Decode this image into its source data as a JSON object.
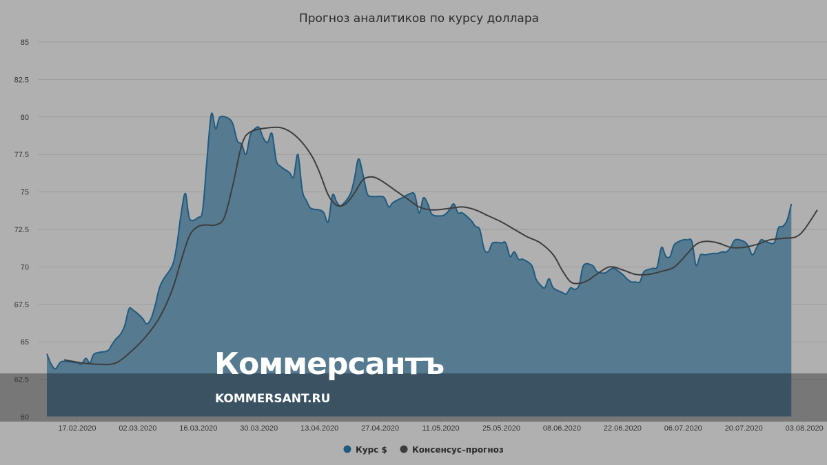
{
  "chart_data": {
    "type": "area",
    "title": "Прогноз аналитиков по курсу доллара",
    "xlabel": "",
    "ylabel": "",
    "ylim": [
      60,
      85
    ],
    "yticks": [
      "60",
      "62.5",
      "65",
      "67.5",
      "70",
      "72.5",
      "75",
      "77.5",
      "80",
      "82.5",
      "85"
    ],
    "xticks": [
      "17.02.2020",
      "02.03.2020",
      "16.03.2020",
      "30.03.2020",
      "13.04.2020",
      "27.04.2020",
      "11.05.2020",
      "25.05.2020",
      "08.06.2020",
      "22.06.2020",
      "06.07.2020",
      "20.07.2020",
      "03.08.2020"
    ],
    "xrange": [
      "2020-02-10",
      "2020-08-06"
    ],
    "grid": true,
    "legend_position": "bottom-center",
    "series": [
      {
        "name": "Курс $",
        "color": "#1f5a80",
        "fill": "#567a8f",
        "style": "area",
        "points": [
          [
            "2020-02-10",
            64.2
          ],
          [
            "2020-02-11",
            63.5
          ],
          [
            "2020-02-12",
            63.2
          ],
          [
            "2020-02-13",
            63.6
          ],
          [
            "2020-02-14",
            63.7
          ],
          [
            "2020-02-17",
            63.6
          ],
          [
            "2020-02-18",
            63.5
          ],
          [
            "2020-02-19",
            63.9
          ],
          [
            "2020-02-20",
            63.6
          ],
          [
            "2020-02-21",
            64.2
          ],
          [
            "2020-02-24",
            64.4
          ],
          [
            "2020-02-25",
            64.8
          ],
          [
            "2020-02-26",
            65.2
          ],
          [
            "2020-02-27",
            65.5
          ],
          [
            "2020-02-28",
            66.1
          ],
          [
            "2020-02-29",
            67.2
          ],
          [
            "2020-03-01",
            67.1
          ],
          [
            "2020-03-03",
            66.6
          ],
          [
            "2020-03-04",
            66.2
          ],
          [
            "2020-03-05",
            66.5
          ],
          [
            "2020-03-06",
            67.4
          ],
          [
            "2020-03-07",
            68.6
          ],
          [
            "2020-03-08",
            69.2
          ],
          [
            "2020-03-10",
            70.1
          ],
          [
            "2020-03-11",
            71.4
          ],
          [
            "2020-03-12",
            73.5
          ],
          [
            "2020-03-13",
            74.9
          ],
          [
            "2020-03-14",
            73.2
          ],
          [
            "2020-03-16",
            73.3
          ],
          [
            "2020-03-17",
            73.8
          ],
          [
            "2020-03-18",
            77.2
          ],
          [
            "2020-03-19",
            80.2
          ],
          [
            "2020-03-20",
            79.2
          ],
          [
            "2020-03-21",
            80.0
          ],
          [
            "2020-03-23",
            79.9
          ],
          [
            "2020-03-24",
            79.5
          ],
          [
            "2020-03-25",
            78.4
          ],
          [
            "2020-03-26",
            78.2
          ],
          [
            "2020-03-27",
            77.5
          ],
          [
            "2020-03-28",
            78.8
          ],
          [
            "2020-03-29",
            79.2
          ],
          [
            "2020-03-30",
            79.3
          ],
          [
            "2020-03-31",
            78.6
          ],
          [
            "2020-04-01",
            78.3
          ],
          [
            "2020-04-02",
            78.9
          ],
          [
            "2020-04-03",
            77.1
          ],
          [
            "2020-04-04",
            76.7
          ],
          [
            "2020-04-06",
            76.3
          ],
          [
            "2020-04-07",
            76.0
          ],
          [
            "2020-04-08",
            77.5
          ],
          [
            "2020-04-09",
            75.1
          ],
          [
            "2020-04-10",
            74.4
          ],
          [
            "2020-04-11",
            73.9
          ],
          [
            "2020-04-13",
            73.8
          ],
          [
            "2020-04-14",
            73.6
          ],
          [
            "2020-04-15",
            73.0
          ],
          [
            "2020-04-16",
            74.8
          ],
          [
            "2020-04-17",
            74.3
          ],
          [
            "2020-04-18",
            74.1
          ],
          [
            "2020-04-20",
            74.8
          ],
          [
            "2020-04-21",
            75.8
          ],
          [
            "2020-04-22",
            77.2
          ],
          [
            "2020-04-23",
            76.2
          ],
          [
            "2020-04-24",
            74.9
          ],
          [
            "2020-04-25",
            74.7
          ],
          [
            "2020-04-27",
            74.7
          ],
          [
            "2020-04-28",
            74.6
          ],
          [
            "2020-04-29",
            74.0
          ],
          [
            "2020-04-30",
            74.3
          ],
          [
            "2020-05-02",
            74.6
          ],
          [
            "2020-05-04",
            74.9
          ],
          [
            "2020-05-05",
            74.8
          ],
          [
            "2020-05-06",
            73.6
          ],
          [
            "2020-05-07",
            74.6
          ],
          [
            "2020-05-08",
            74.2
          ],
          [
            "2020-05-09",
            73.5
          ],
          [
            "2020-05-11",
            73.4
          ],
          [
            "2020-05-12",
            73.5
          ],
          [
            "2020-05-13",
            73.8
          ],
          [
            "2020-05-14",
            74.2
          ],
          [
            "2020-05-15",
            73.6
          ],
          [
            "2020-05-16",
            73.6
          ],
          [
            "2020-05-18",
            73.1
          ],
          [
            "2020-05-19",
            72.7
          ],
          [
            "2020-05-20",
            72.5
          ],
          [
            "2020-05-21",
            71.2
          ],
          [
            "2020-05-22",
            71.0
          ],
          [
            "2020-05-23",
            71.6
          ],
          [
            "2020-05-25",
            71.6
          ],
          [
            "2020-05-26",
            71.6
          ],
          [
            "2020-05-27",
            70.7
          ],
          [
            "2020-05-28",
            71.0
          ],
          [
            "2020-05-29",
            70.5
          ],
          [
            "2020-05-30",
            70.5
          ],
          [
            "2020-06-01",
            70.1
          ],
          [
            "2020-06-02",
            69.2
          ],
          [
            "2020-06-03",
            68.8
          ],
          [
            "2020-06-04",
            68.6
          ],
          [
            "2020-06-05",
            69.2
          ],
          [
            "2020-06-06",
            68.6
          ],
          [
            "2020-06-08",
            68.3
          ],
          [
            "2020-06-09",
            68.2
          ],
          [
            "2020-06-10",
            68.6
          ],
          [
            "2020-06-11",
            68.5
          ],
          [
            "2020-06-12",
            68.8
          ],
          [
            "2020-06-13",
            70.1
          ],
          [
            "2020-06-15",
            70.1
          ],
          [
            "2020-06-16",
            69.7
          ],
          [
            "2020-06-17",
            69.6
          ],
          [
            "2020-06-18",
            69.6
          ],
          [
            "2020-06-19",
            69.8
          ],
          [
            "2020-06-20",
            69.9
          ],
          [
            "2020-06-22",
            69.5
          ],
          [
            "2020-06-23",
            69.2
          ],
          [
            "2020-06-24",
            69.0
          ],
          [
            "2020-06-25",
            69.0
          ],
          [
            "2020-06-26",
            69.0
          ],
          [
            "2020-06-27",
            69.7
          ],
          [
            "2020-06-29",
            69.9
          ],
          [
            "2020-06-30",
            70.0
          ],
          [
            "2020-07-01",
            71.3
          ],
          [
            "2020-07-02",
            70.7
          ],
          [
            "2020-07-03",
            70.7
          ],
          [
            "2020-07-04",
            71.5
          ],
          [
            "2020-07-06",
            71.8
          ],
          [
            "2020-07-07",
            71.8
          ],
          [
            "2020-07-08",
            71.7
          ],
          [
            "2020-07-09",
            70.1
          ],
          [
            "2020-07-10",
            70.8
          ],
          [
            "2020-07-11",
            70.8
          ],
          [
            "2020-07-13",
            70.9
          ],
          [
            "2020-07-14",
            70.9
          ],
          [
            "2020-07-15",
            71.0
          ],
          [
            "2020-07-16",
            71.0
          ],
          [
            "2020-07-17",
            71.3
          ],
          [
            "2020-07-18",
            71.8
          ],
          [
            "2020-07-20",
            71.7
          ],
          [
            "2020-07-21",
            71.4
          ],
          [
            "2020-07-22",
            70.8
          ],
          [
            "2020-07-23",
            71.3
          ],
          [
            "2020-07-24",
            71.8
          ],
          [
            "2020-07-25",
            71.7
          ],
          [
            "2020-07-27",
            71.6
          ],
          [
            "2020-07-28",
            72.6
          ],
          [
            "2020-07-29",
            72.7
          ],
          [
            "2020-07-30",
            73.1
          ],
          [
            "2020-07-31",
            74.2
          ]
        ]
      },
      {
        "name": "Консенсус–прогноз",
        "color": "#3d3d3d",
        "style": "line",
        "points": [
          [
            "2020-02-14",
            63.8
          ],
          [
            "2020-02-18",
            63.6
          ],
          [
            "2020-02-22",
            63.5
          ],
          [
            "2020-02-26",
            63.6
          ],
          [
            "2020-03-01",
            64.5
          ],
          [
            "2020-03-04",
            65.4
          ],
          [
            "2020-03-07",
            66.6
          ],
          [
            "2020-03-10",
            68.5
          ],
          [
            "2020-03-12",
            70.4
          ],
          [
            "2020-03-14",
            72.1
          ],
          [
            "2020-03-16",
            72.7
          ],
          [
            "2020-03-18",
            72.8
          ],
          [
            "2020-03-20",
            72.8
          ],
          [
            "2020-03-22",
            73.3
          ],
          [
            "2020-03-24",
            75.5
          ],
          [
            "2020-03-26",
            78.1
          ],
          [
            "2020-03-28",
            79.0
          ],
          [
            "2020-04-02",
            79.3
          ],
          [
            "2020-04-05",
            79.2
          ],
          [
            "2020-04-08",
            78.6
          ],
          [
            "2020-04-11",
            77.5
          ],
          [
            "2020-04-13",
            76.3
          ],
          [
            "2020-04-15",
            74.8
          ],
          [
            "2020-04-17",
            74.1
          ],
          [
            "2020-04-19",
            74.2
          ],
          [
            "2020-04-21",
            74.9
          ],
          [
            "2020-04-23",
            75.8
          ],
          [
            "2020-04-25",
            76.0
          ],
          [
            "2020-04-27",
            75.8
          ],
          [
            "2020-04-30",
            75.2
          ],
          [
            "2020-05-03",
            74.6
          ],
          [
            "2020-05-06",
            74.0
          ],
          [
            "2020-05-09",
            73.8
          ],
          [
            "2020-05-13",
            73.9
          ],
          [
            "2020-05-16",
            74.0
          ],
          [
            "2020-05-19",
            73.8
          ],
          [
            "2020-05-22",
            73.4
          ],
          [
            "2020-05-25",
            73.0
          ],
          [
            "2020-05-28",
            72.5
          ],
          [
            "2020-05-31",
            72.0
          ],
          [
            "2020-06-03",
            71.6
          ],
          [
            "2020-06-06",
            70.8
          ],
          [
            "2020-06-08",
            69.8
          ],
          [
            "2020-06-10",
            69.0
          ],
          [
            "2020-06-12",
            68.9
          ],
          [
            "2020-06-14",
            69.1
          ],
          [
            "2020-06-16",
            69.5
          ],
          [
            "2020-06-19",
            70.0
          ],
          [
            "2020-06-22",
            69.8
          ],
          [
            "2020-06-25",
            69.5
          ],
          [
            "2020-06-28",
            69.5
          ],
          [
            "2020-07-01",
            69.7
          ],
          [
            "2020-07-04",
            70.0
          ],
          [
            "2020-07-07",
            70.9
          ],
          [
            "2020-07-09",
            71.5
          ],
          [
            "2020-07-11",
            71.7
          ],
          [
            "2020-07-14",
            71.6
          ],
          [
            "2020-07-17",
            71.3
          ],
          [
            "2020-07-20",
            71.3
          ],
          [
            "2020-07-23",
            71.5
          ],
          [
            "2020-07-26",
            71.8
          ],
          [
            "2020-07-29",
            71.9
          ],
          [
            "2020-08-01",
            72.0
          ],
          [
            "2020-08-03",
            72.5
          ],
          [
            "2020-08-06",
            73.8
          ]
        ]
      }
    ]
  },
  "watermark": {
    "brand": "Коммерсантъ",
    "url": "KOMMERSANT.RU"
  }
}
